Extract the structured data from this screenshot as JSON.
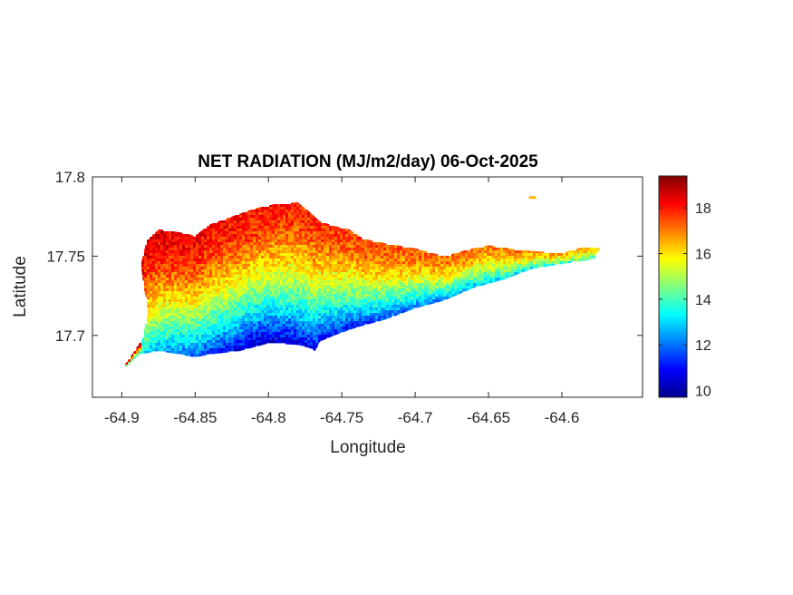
{
  "chart_data": {
    "type": "heatmap",
    "title": "NET RADIATION (MJ/m2/day) 06-Oct-2025",
    "xlabel": "Longitude",
    "ylabel": "Latitude",
    "xlim": [
      -64.92,
      -64.545
    ],
    "ylim": [
      17.661,
      17.8
    ],
    "x_ticks": [
      -64.9,
      -64.85,
      -64.8,
      -64.75,
      -64.7,
      -64.65,
      -64.6
    ],
    "x_tick_labels": [
      "-64.9",
      "-64.85",
      "-64.8",
      "-64.75",
      "-64.7",
      "-64.65",
      "-64.6"
    ],
    "y_ticks": [
      17.7,
      17.75,
      17.8
    ],
    "y_tick_labels": [
      "17.7",
      "17.75",
      "17.8"
    ],
    "colormap": "jet",
    "clim": [
      9.7,
      19.4
    ],
    "colorbar_ticks": [
      10,
      12,
      14,
      16,
      18
    ],
    "colorbar_tick_labels": [
      "10",
      "12",
      "14",
      "16",
      "18"
    ],
    "colorbar_location": "right",
    "grid": false,
    "land_outline": [
      [
        -64.9,
        17.679
      ],
      [
        -64.893,
        17.688
      ],
      [
        -64.886,
        17.698
      ],
      [
        -64.882,
        17.715
      ],
      [
        -64.885,
        17.73
      ],
      [
        -64.887,
        17.745
      ],
      [
        -64.883,
        17.76
      ],
      [
        -64.875,
        17.767
      ],
      [
        -64.86,
        17.765
      ],
      [
        -64.85,
        17.763
      ],
      [
        -64.84,
        17.77
      ],
      [
        -64.825,
        17.775
      ],
      [
        -64.81,
        17.78
      ],
      [
        -64.795,
        17.783
      ],
      [
        -64.78,
        17.784
      ],
      [
        -64.773,
        17.779
      ],
      [
        -64.765,
        17.772
      ],
      [
        -64.755,
        17.769
      ],
      [
        -64.745,
        17.767
      ],
      [
        -64.735,
        17.761
      ],
      [
        -64.72,
        17.758
      ],
      [
        -64.7,
        17.755
      ],
      [
        -64.68,
        17.75
      ],
      [
        -64.665,
        17.754
      ],
      [
        -64.65,
        17.757
      ],
      [
        -64.63,
        17.754
      ],
      [
        -64.615,
        17.753
      ],
      [
        -64.6,
        17.752
      ],
      [
        -64.585,
        17.756
      ],
      [
        -64.574,
        17.755
      ],
      [
        -64.578,
        17.748
      ],
      [
        -64.6,
        17.745
      ],
      [
        -64.62,
        17.742
      ],
      [
        -64.64,
        17.735
      ],
      [
        -64.66,
        17.73
      ],
      [
        -64.68,
        17.722
      ],
      [
        -64.7,
        17.717
      ],
      [
        -64.72,
        17.71
      ],
      [
        -64.74,
        17.705
      ],
      [
        -64.755,
        17.7
      ],
      [
        -64.765,
        17.696
      ],
      [
        -64.768,
        17.69
      ],
      [
        -64.772,
        17.692
      ],
      [
        -64.78,
        17.694
      ],
      [
        -64.8,
        17.695
      ],
      [
        -64.82,
        17.69
      ],
      [
        -64.84,
        17.688
      ],
      [
        -64.85,
        17.686
      ],
      [
        -64.86,
        17.688
      ],
      [
        -64.875,
        17.69
      ],
      [
        -64.888,
        17.688
      ],
      [
        -64.897,
        17.68
      ]
    ],
    "islets": [
      [
        -64.62,
        17.787
      ]
    ],
    "value_pattern": {
      "north": {
        "west_value": 18.6,
        "east_value": 16.5
      },
      "south": {
        "west_value": 13.5,
        "central_value": 10.2,
        "east_value": 14.0
      }
    }
  }
}
